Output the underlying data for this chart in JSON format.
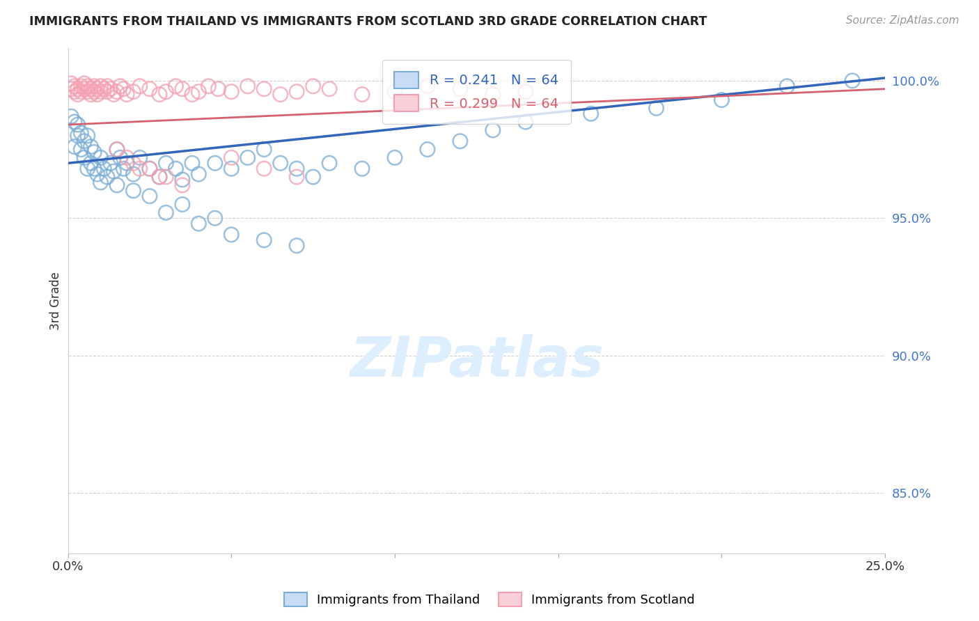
{
  "title": "IMMIGRANTS FROM THAILAND VS IMMIGRANTS FROM SCOTLAND 3RD GRADE CORRELATION CHART",
  "source": "Source: ZipAtlas.com",
  "ylabel": "3rd Grade",
  "ytick_labels": [
    "85.0%",
    "90.0%",
    "95.0%",
    "100.0%"
  ],
  "ytick_values": [
    0.85,
    0.9,
    0.95,
    1.0
  ],
  "xlim": [
    0.0,
    0.25
  ],
  "ylim": [
    0.828,
    1.012
  ],
  "legend_blue_label": "Immigrants from Thailand",
  "legend_pink_label": "Immigrants from Scotland",
  "blue_color": "#7aadd4",
  "pink_color": "#f4a0b0",
  "blue_line_color": "#3366bb",
  "pink_line_color": "#d46070",
  "watermark_color": "#ddeeff",
  "background_color": "#ffffff",
  "grid_color": "#cccccc",
  "blue_line_y0": 0.97,
  "blue_line_y1": 1.001,
  "pink_line_y0": 0.984,
  "pink_line_y1": 0.997,
  "blue_x": [
    0.001,
    0.002,
    0.002,
    0.003,
    0.003,
    0.004,
    0.004,
    0.005,
    0.005,
    0.006,
    0.006,
    0.007,
    0.007,
    0.008,
    0.008,
    0.009,
    0.01,
    0.01,
    0.011,
    0.012,
    0.013,
    0.014,
    0.015,
    0.016,
    0.017,
    0.018,
    0.02,
    0.022,
    0.025,
    0.028,
    0.03,
    0.033,
    0.035,
    0.038,
    0.04,
    0.045,
    0.05,
    0.055,
    0.06,
    0.065,
    0.07,
    0.075,
    0.08,
    0.09,
    0.1,
    0.11,
    0.12,
    0.13,
    0.14,
    0.16,
    0.18,
    0.2,
    0.22,
    0.24,
    0.025,
    0.03,
    0.04,
    0.05,
    0.06,
    0.07,
    0.015,
    0.02,
    0.035,
    0.045
  ],
  "blue_y": [
    0.987,
    0.985,
    0.976,
    0.984,
    0.98,
    0.975,
    0.981,
    0.978,
    0.972,
    0.968,
    0.98,
    0.976,
    0.97,
    0.974,
    0.968,
    0.966,
    0.972,
    0.963,
    0.968,
    0.965,
    0.97,
    0.967,
    0.975,
    0.972,
    0.968,
    0.97,
    0.966,
    0.972,
    0.968,
    0.965,
    0.97,
    0.968,
    0.964,
    0.97,
    0.966,
    0.97,
    0.968,
    0.972,
    0.975,
    0.97,
    0.968,
    0.965,
    0.97,
    0.968,
    0.972,
    0.975,
    0.978,
    0.982,
    0.985,
    0.988,
    0.99,
    0.993,
    0.998,
    1.0,
    0.958,
    0.952,
    0.948,
    0.944,
    0.942,
    0.94,
    0.962,
    0.96,
    0.955,
    0.95
  ],
  "pink_x": [
    0.001,
    0.001,
    0.002,
    0.002,
    0.003,
    0.003,
    0.004,
    0.004,
    0.005,
    0.005,
    0.006,
    0.006,
    0.007,
    0.007,
    0.008,
    0.008,
    0.009,
    0.009,
    0.01,
    0.01,
    0.011,
    0.012,
    0.012,
    0.013,
    0.014,
    0.015,
    0.016,
    0.017,
    0.018,
    0.02,
    0.022,
    0.025,
    0.028,
    0.03,
    0.033,
    0.035,
    0.038,
    0.04,
    0.043,
    0.046,
    0.05,
    0.055,
    0.06,
    0.065,
    0.07,
    0.075,
    0.08,
    0.09,
    0.1,
    0.11,
    0.12,
    0.13,
    0.14,
    0.05,
    0.06,
    0.07,
    0.02,
    0.025,
    0.03,
    0.035,
    0.015,
    0.018,
    0.022,
    0.028
  ],
  "pink_y": [
    0.999,
    0.997,
    0.998,
    0.996,
    0.997,
    0.995,
    0.996,
    0.998,
    0.999,
    0.997,
    0.998,
    0.996,
    0.997,
    0.995,
    0.996,
    0.998,
    0.997,
    0.995,
    0.998,
    0.996,
    0.997,
    0.998,
    0.996,
    0.997,
    0.995,
    0.996,
    0.998,
    0.997,
    0.995,
    0.996,
    0.998,
    0.997,
    0.995,
    0.996,
    0.998,
    0.997,
    0.995,
    0.996,
    0.998,
    0.997,
    0.996,
    0.998,
    0.997,
    0.995,
    0.996,
    0.998,
    0.997,
    0.995,
    0.996,
    0.998,
    0.997,
    0.995,
    0.996,
    0.972,
    0.968,
    0.965,
    0.97,
    0.968,
    0.965,
    0.962,
    0.975,
    0.972,
    0.968,
    0.965
  ]
}
